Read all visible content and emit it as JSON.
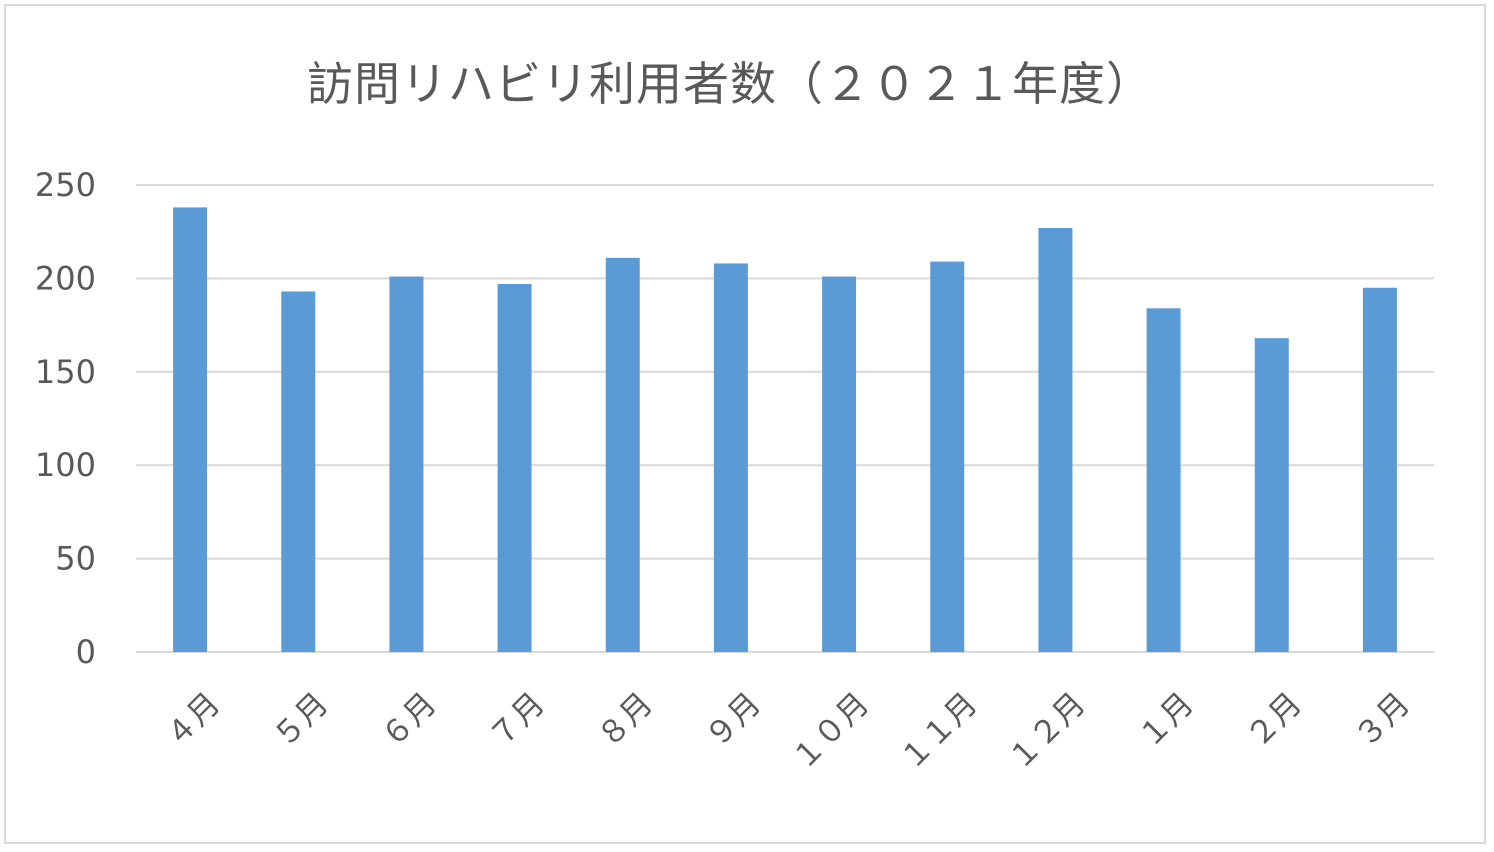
{
  "chart_data": {
    "type": "bar",
    "title": "訪問リハビリ利用者数（２０２１年度）",
    "categories": [
      "４月",
      "５月",
      "６月",
      "７月",
      "８月",
      "９月",
      "１０月",
      "１１月",
      "１２月",
      "１月",
      "２月",
      "３月"
    ],
    "values": [
      238,
      193,
      201,
      197,
      211,
      208,
      201,
      209,
      227,
      184,
      168,
      195
    ],
    "ylim": [
      0,
      250
    ],
    "yticks": [
      0,
      50,
      100,
      150,
      200,
      250
    ],
    "xlabel": "",
    "ylabel": "",
    "grid": true,
    "legend": false,
    "colors": {
      "bar": "#5b9bd5",
      "grid": "#d9d9d9",
      "text": "#595959"
    }
  }
}
